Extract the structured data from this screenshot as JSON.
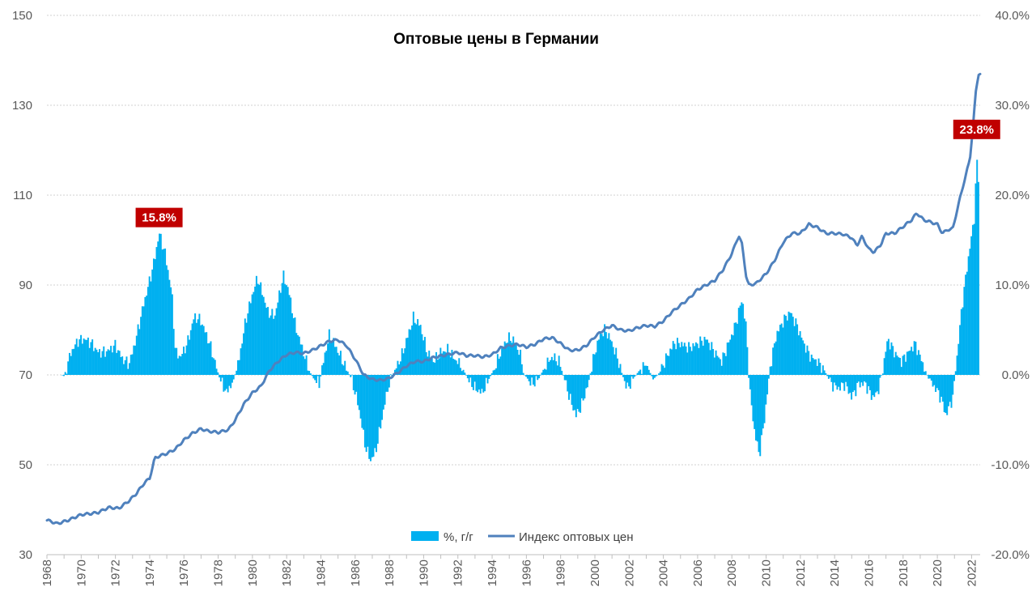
{
  "chart_data": {
    "type": "bar+line",
    "title": "Оптовые цены в Германии",
    "x_range": [
      1968,
      2022.5
    ],
    "x_tick_labels": [
      "1968",
      "1970",
      "1972",
      "1974",
      "1976",
      "1978",
      "1980",
      "1982",
      "1984",
      "1986",
      "1988",
      "1990",
      "1992",
      "1994",
      "1996",
      "1998",
      "2000",
      "2002",
      "2004",
      "2006",
      "2008",
      "2010",
      "2012",
      "2014",
      "2016",
      "2018",
      "2020",
      "2022"
    ],
    "left_axis": {
      "range": [
        30,
        150
      ],
      "ticks": [
        "30",
        "50",
        "70",
        "90",
        "110",
        "130",
        "150"
      ]
    },
    "right_axis": {
      "range": [
        -20,
        40
      ],
      "ticks": [
        "-20.0%",
        "-10.0%",
        "0.0%",
        "10.0%",
        "20.0%",
        "30.0%",
        "40.0%"
      ]
    },
    "grid": "horizontal-dotted",
    "legend_position": "bottom-center",
    "series": [
      {
        "name": "%, г/г",
        "type": "bar",
        "axis": "right",
        "color": "#00b0f0",
        "yoy_anchors": [
          [
            1968.9,
            0
          ],
          [
            1968.95,
            -0.3
          ],
          [
            1969.1,
            0.5
          ],
          [
            1969.4,
            2.5
          ],
          [
            1969.8,
            3.8
          ],
          [
            1970.2,
            4.0
          ],
          [
            1970.6,
            3.5
          ],
          [
            1971.0,
            2.5
          ],
          [
            1971.5,
            2.6
          ],
          [
            1972.0,
            3.3
          ],
          [
            1972.4,
            1.8
          ],
          [
            1972.8,
            1.2
          ],
          [
            1973.2,
            4.0
          ],
          [
            1973.6,
            7.5
          ],
          [
            1974.0,
            10.5
          ],
          [
            1974.3,
            13.0
          ],
          [
            1974.55,
            15.8
          ],
          [
            1974.9,
            13.5
          ],
          [
            1975.3,
            9.0
          ],
          [
            1975.5,
            2.5
          ],
          [
            1975.8,
            2.0
          ],
          [
            1976.2,
            3.5
          ],
          [
            1976.6,
            6.5
          ],
          [
            1977.0,
            6.0
          ],
          [
            1977.5,
            3.5
          ],
          [
            1977.8,
            1.5
          ],
          [
            1978.1,
            -0.5
          ],
          [
            1978.5,
            -2.0
          ],
          [
            1978.9,
            -0.5
          ],
          [
            1979.2,
            1.5
          ],
          [
            1979.6,
            6.0
          ],
          [
            1980.0,
            9.0
          ],
          [
            1980.3,
            10.8
          ],
          [
            1980.6,
            9.0
          ],
          [
            1980.9,
            7.0
          ],
          [
            1981.3,
            6.5
          ],
          [
            1981.8,
            11.0
          ],
          [
            1982.1,
            9.5
          ],
          [
            1982.5,
            5.5
          ],
          [
            1982.9,
            3.0
          ],
          [
            1983.3,
            0.5
          ],
          [
            1983.6,
            -0.5
          ],
          [
            1983.9,
            -1.0
          ],
          [
            1984.2,
            2.0
          ],
          [
            1984.5,
            4.5
          ],
          [
            1984.9,
            3.0
          ],
          [
            1985.4,
            1.0
          ],
          [
            1985.8,
            -0.5
          ],
          [
            1986.2,
            -3.5
          ],
          [
            1986.6,
            -8.0
          ],
          [
            1986.9,
            -9.5
          ],
          [
            1987.2,
            -8.5
          ],
          [
            1987.6,
            -4.5
          ],
          [
            1987.9,
            -1.5
          ],
          [
            1988.3,
            0.5
          ],
          [
            1988.7,
            2.0
          ],
          [
            1989.1,
            4.5
          ],
          [
            1989.4,
            6.3
          ],
          [
            1989.8,
            5.5
          ],
          [
            1990.2,
            2.5
          ],
          [
            1990.6,
            1.5
          ],
          [
            1991.0,
            2.5
          ],
          [
            1991.4,
            2.8
          ],
          [
            1991.8,
            1.8
          ],
          [
            1992.2,
            1.0
          ],
          [
            1992.6,
            -0.5
          ],
          [
            1993.0,
            -1.5
          ],
          [
            1993.4,
            -2.0
          ],
          [
            1993.8,
            -0.5
          ],
          [
            1994.2,
            1.0
          ],
          [
            1994.6,
            3.0
          ],
          [
            1994.9,
            4.0
          ],
          [
            1995.2,
            4.0
          ],
          [
            1995.6,
            2.5
          ],
          [
            1995.9,
            0.0
          ],
          [
            1996.3,
            -1.0
          ],
          [
            1996.7,
            -0.5
          ],
          [
            1997.1,
            1.0
          ],
          [
            1997.5,
            2.0
          ],
          [
            1997.9,
            1.5
          ],
          [
            1998.3,
            -1.0
          ],
          [
            1998.6,
            -3.0
          ],
          [
            1998.9,
            -4.5
          ],
          [
            1999.2,
            -3.5
          ],
          [
            1999.6,
            -1.0
          ],
          [
            2000.0,
            2.5
          ],
          [
            2000.3,
            4.5
          ],
          [
            2000.6,
            5.0
          ],
          [
            2000.9,
            4.0
          ],
          [
            2001.3,
            2.0
          ],
          [
            2001.6,
            0.0
          ],
          [
            2001.9,
            -1.5
          ],
          [
            2002.2,
            -0.5
          ],
          [
            2002.6,
            0.5
          ],
          [
            2003.0,
            1.2
          ],
          [
            2003.4,
            -0.5
          ],
          [
            2003.8,
            0.3
          ],
          [
            2004.2,
            2.0
          ],
          [
            2004.6,
            3.5
          ],
          [
            2005.0,
            3.5
          ],
          [
            2005.5,
            3.0
          ],
          [
            2006.0,
            3.5
          ],
          [
            2006.5,
            4.0
          ],
          [
            2007.0,
            2.5
          ],
          [
            2007.4,
            1.5
          ],
          [
            2007.8,
            3.5
          ],
          [
            2008.2,
            5.5
          ],
          [
            2008.6,
            8.5
          ],
          [
            2008.85,
            5.0
          ],
          [
            2009.0,
            -1.0
          ],
          [
            2009.3,
            -6.0
          ],
          [
            2009.6,
            -9.0
          ],
          [
            2009.9,
            -5.0
          ],
          [
            2010.2,
            0.5
          ],
          [
            2010.6,
            4.5
          ],
          [
            2011.0,
            6.0
          ],
          [
            2011.4,
            7.0
          ],
          [
            2011.8,
            5.5
          ],
          [
            2012.2,
            3.5
          ],
          [
            2012.6,
            2.0
          ],
          [
            2013.0,
            1.5
          ],
          [
            2013.4,
            0.5
          ],
          [
            2013.8,
            -1.0
          ],
          [
            2014.2,
            -1.5
          ],
          [
            2014.6,
            -1.0
          ],
          [
            2015.0,
            -2.5
          ],
          [
            2015.4,
            -1.0
          ],
          [
            2015.8,
            -1.0
          ],
          [
            2016.2,
            -2.5
          ],
          [
            2016.5,
            -2.0
          ],
          [
            2016.8,
            0.5
          ],
          [
            2017.1,
            4.0
          ],
          [
            2017.5,
            2.5
          ],
          [
            2017.9,
            1.5
          ],
          [
            2018.3,
            2.5
          ],
          [
            2018.7,
            3.5
          ],
          [
            2019.1,
            1.5
          ],
          [
            2019.5,
            -0.5
          ],
          [
            2019.9,
            -1.5
          ],
          [
            2020.2,
            -2.5
          ],
          [
            2020.5,
            -4.5
          ],
          [
            2020.9,
            -2.5
          ],
          [
            2021.1,
            1.0
          ],
          [
            2021.4,
            7.0
          ],
          [
            2021.7,
            11.5
          ],
          [
            2022.0,
            15.5
          ],
          [
            2022.15,
            17.5
          ],
          [
            2022.3,
            23.8
          ],
          [
            2022.4,
            22.0
          ]
        ]
      },
      {
        "name": "Индекс оптовых цен",
        "type": "line",
        "axis": "left",
        "color": "#4f81bd",
        "index_anchors": [
          [
            1968.0,
            37.7
          ],
          [
            1968.6,
            36.9
          ],
          [
            1969.2,
            37.6
          ],
          [
            1970.0,
            38.9
          ],
          [
            1970.7,
            39.2
          ],
          [
            1971.0,
            39.4
          ],
          [
            1971.6,
            40.5
          ],
          [
            1972.2,
            40.3
          ],
          [
            1972.8,
            42.0
          ],
          [
            1973.2,
            43.5
          ],
          [
            1973.7,
            46.0
          ],
          [
            1974.0,
            47.0
          ],
          [
            1974.3,
            51.5
          ],
          [
            1974.6,
            52.0
          ],
          [
            1975.0,
            52.5
          ],
          [
            1975.5,
            53.5
          ],
          [
            1976.0,
            55.5
          ],
          [
            1976.5,
            57.0
          ],
          [
            1977.0,
            58.0
          ],
          [
            1977.4,
            57.5
          ],
          [
            1978.0,
            57.2
          ],
          [
            1978.6,
            57.8
          ],
          [
            1979.0,
            60.0
          ],
          [
            1979.5,
            63.5
          ],
          [
            1980.0,
            66.0
          ],
          [
            1980.5,
            67.5
          ],
          [
            1981.0,
            71.0
          ],
          [
            1981.5,
            73.0
          ],
          [
            1982.0,
            74.5
          ],
          [
            1982.5,
            75.0
          ],
          [
            1983.0,
            74.8
          ],
          [
            1983.5,
            75.5
          ],
          [
            1984.0,
            76.5
          ],
          [
            1984.5,
            77.5
          ],
          [
            1985.0,
            77.8
          ],
          [
            1985.5,
            76.5
          ],
          [
            1986.0,
            73.5
          ],
          [
            1986.5,
            70.0
          ],
          [
            1987.0,
            69.0
          ],
          [
            1987.5,
            68.8
          ],
          [
            1988.0,
            69.3
          ],
          [
            1988.5,
            70.5
          ],
          [
            1989.0,
            72.0
          ],
          [
            1989.5,
            73.0
          ],
          [
            1990.0,
            73.0
          ],
          [
            1990.5,
            73.8
          ],
          [
            1991.0,
            74.2
          ],
          [
            1991.5,
            74.6
          ],
          [
            1992.0,
            75.0
          ],
          [
            1992.5,
            74.3
          ],
          [
            1993.0,
            74.3
          ],
          [
            1993.5,
            74.0
          ],
          [
            1994.0,
            74.5
          ],
          [
            1994.5,
            76.0
          ],
          [
            1995.0,
            76.5
          ],
          [
            1995.5,
            76.8
          ],
          [
            1996.0,
            76.2
          ],
          [
            1996.5,
            76.8
          ],
          [
            1997.0,
            78.0
          ],
          [
            1997.5,
            78.3
          ],
          [
            1998.0,
            77.0
          ],
          [
            1998.5,
            75.5
          ],
          [
            1999.0,
            75.5
          ],
          [
            1999.5,
            76.5
          ],
          [
            2000.0,
            78.5
          ],
          [
            2000.5,
            80.0
          ],
          [
            2001.0,
            81.0
          ],
          [
            2001.5,
            80.0
          ],
          [
            2002.0,
            79.8
          ],
          [
            2002.5,
            80.5
          ],
          [
            2003.0,
            81.0
          ],
          [
            2003.5,
            80.8
          ],
          [
            2004.0,
            82.0
          ],
          [
            2004.5,
            84.0
          ],
          [
            2005.0,
            85.5
          ],
          [
            2005.5,
            87.0
          ],
          [
            2006.0,
            89.0
          ],
          [
            2006.5,
            90.0
          ],
          [
            2007.0,
            91.0
          ],
          [
            2007.5,
            93.5
          ],
          [
            2008.0,
            97.0
          ],
          [
            2008.4,
            101.0
          ],
          [
            2008.6,
            99.0
          ],
          [
            2008.85,
            91.5
          ],
          [
            2009.0,
            90.0
          ],
          [
            2009.4,
            90.3
          ],
          [
            2010.0,
            92.5
          ],
          [
            2010.5,
            95.5
          ],
          [
            2011.0,
            99.5
          ],
          [
            2011.5,
            101.5
          ],
          [
            2012.0,
            101.5
          ],
          [
            2012.5,
            103.5
          ],
          [
            2013.0,
            102.8
          ],
          [
            2013.5,
            101.5
          ],
          [
            2014.0,
            101.5
          ],
          [
            2014.5,
            101.3
          ],
          [
            2015.0,
            100.5
          ],
          [
            2015.3,
            98.8
          ],
          [
            2015.6,
            100.8
          ],
          [
            2016.0,
            98.0
          ],
          [
            2016.3,
            97.3
          ],
          [
            2016.7,
            99.0
          ],
          [
            2017.0,
            101.5
          ],
          [
            2017.5,
            101.5
          ],
          [
            2018.0,
            103.0
          ],
          [
            2018.5,
            104.5
          ],
          [
            2018.8,
            106.0
          ],
          [
            2019.2,
            104.5
          ],
          [
            2019.6,
            104.0
          ],
          [
            2020.0,
            103.5
          ],
          [
            2020.3,
            101.5
          ],
          [
            2020.6,
            102.3
          ],
          [
            2020.9,
            102.5
          ],
          [
            2021.3,
            109.0
          ],
          [
            2021.6,
            113.5
          ],
          [
            2021.9,
            118.0
          ],
          [
            2022.1,
            126.0
          ],
          [
            2022.25,
            133.0
          ],
          [
            2022.4,
            137.0
          ],
          [
            2022.5,
            137.0
          ]
        ]
      }
    ],
    "annotations": [
      {
        "label": "15.8%",
        "x": 1974.55,
        "value": 15.8,
        "axis": "right",
        "color": "#c00000"
      },
      {
        "label": "23.8%",
        "x": 2022.3,
        "value": 23.8,
        "axis": "right",
        "color": "#c00000"
      }
    ]
  }
}
